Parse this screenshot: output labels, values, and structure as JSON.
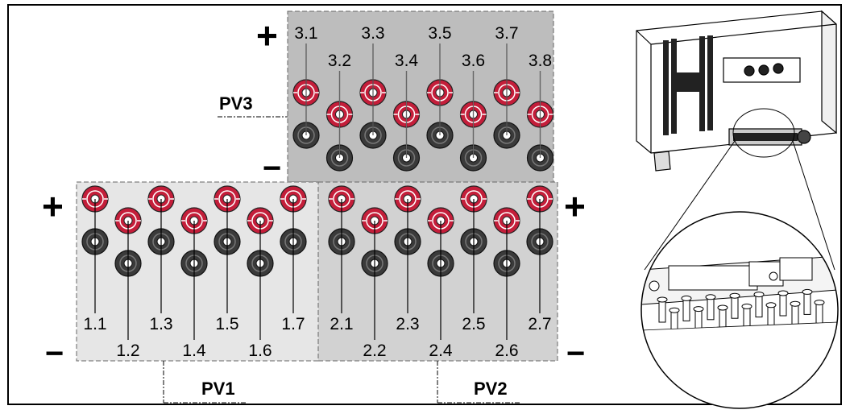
{
  "signs": {
    "plus": "+",
    "minus": "−"
  },
  "colors": {
    "plus_connector": "#c41e3a",
    "minus_connector": "#3a3a3a",
    "pv3_panel": "#bdbdbd",
    "pv2_panel": "#d2d2d2",
    "pv1_panel": "#e6e6e6",
    "outline": "#000000"
  },
  "groups": [
    {
      "id": "pv3",
      "label": "PV3",
      "terminals": [
        {
          "label": "3.1"
        },
        {
          "label": "3.2"
        },
        {
          "label": "3.3"
        },
        {
          "label": "3.4"
        },
        {
          "label": "3.5"
        },
        {
          "label": "3.6"
        },
        {
          "label": "3.7"
        },
        {
          "label": "3.8"
        }
      ]
    },
    {
      "id": "pv1",
      "label": "PV1",
      "terminals": [
        {
          "label": "1.1"
        },
        {
          "label": "1.2"
        },
        {
          "label": "1.3"
        },
        {
          "label": "1.4"
        },
        {
          "label": "1.5"
        },
        {
          "label": "1.6"
        },
        {
          "label": "1.7"
        }
      ]
    },
    {
      "id": "pv2",
      "label": "PV2",
      "terminals": [
        {
          "label": "2.1"
        },
        {
          "label": "2.2"
        },
        {
          "label": "2.3"
        },
        {
          "label": "2.4"
        },
        {
          "label": "2.5"
        },
        {
          "label": "2.6"
        },
        {
          "label": "2.7"
        }
      ]
    }
  ],
  "inverter": {
    "icon": "inverter-device-icon",
    "detail_icon": "connector-detail-magnifier-icon"
  }
}
